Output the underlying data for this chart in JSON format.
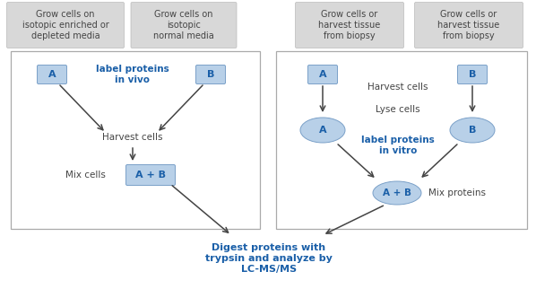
{
  "bg_color": "#ffffff",
  "box_color": "#b8d0e8",
  "box_edge": "#7aa0c8",
  "ellipse_color": "#b8d0e8",
  "blue_text": "#1a5fa8",
  "dark_text": "#444444",
  "arrow_color": "#444444",
  "header_bg": "#d8d8d8",
  "header_edge": "#bbbbbb",
  "panel_edge": "#aaaaaa",
  "left_header1": "Grow cells on\nisotopic enriched or\ndepleted media",
  "left_header2": "Grow cells on\nisotopic\nnormal media",
  "right_header1": "Grow cells or\nharvest tissue\nfrom biopsy",
  "right_header2": "Grow cells or\nharvest tissue\nfrom biopsy",
  "bottom_text": "Digest proteins with\ntrypsin and analyze by\nLC-MS/MS"
}
